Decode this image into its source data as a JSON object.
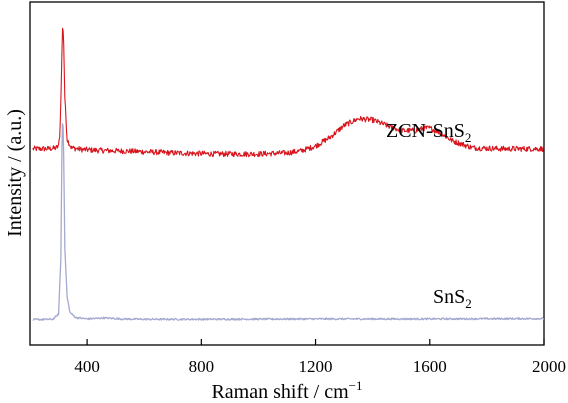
{
  "chart_data": {
    "type": "line",
    "title": "",
    "xlabel": "Raman shift / cm",
    "xlabel_sup": "−1",
    "ylabel": "Intensity / (a.u.)",
    "xlim": [
      200,
      2000
    ],
    "ylim": [
      0,
      1
    ],
    "xticks": [
      400,
      800,
      1200,
      1600,
      2000
    ],
    "xtick_labels": [
      "400",
      "800",
      "1200",
      "1600",
      "2000"
    ],
    "yticks_shown": false,
    "grid": false,
    "legend": "none (inline labels)",
    "series": [
      {
        "name": "ZCN-SnS2",
        "label_main": "ZCN-SnS",
        "label_sub": "2",
        "color": "#d8141c",
        "x": [
          210,
          260,
          290,
          300,
          305,
          310,
          313,
          315,
          318,
          322,
          330,
          345,
          380,
          450,
          550,
          700,
          850,
          1000,
          1100,
          1150,
          1200,
          1250,
          1300,
          1350,
          1400,
          1450,
          1500,
          1550,
          1580,
          1600,
          1630,
          1680,
          1750,
          1850,
          2000
        ],
        "values": [
          0.572,
          0.572,
          0.574,
          0.58,
          0.62,
          0.78,
          0.9,
          0.94,
          0.88,
          0.72,
          0.6,
          0.575,
          0.57,
          0.567,
          0.565,
          0.56,
          0.557,
          0.557,
          0.56,
          0.566,
          0.58,
          0.605,
          0.64,
          0.66,
          0.656,
          0.64,
          0.625,
          0.625,
          0.632,
          0.632,
          0.622,
          0.595,
          0.575,
          0.572,
          0.572
        ]
      },
      {
        "name": "SnS2",
        "label_main": "SnS",
        "label_sub": "2",
        "color": "#a4a9d0",
        "x": [
          210,
          280,
          300,
          308,
          312,
          315,
          318,
          322,
          330,
          340,
          360,
          400,
          460,
          520,
          600,
          800,
          1200,
          1600,
          2000
        ],
        "values": [
          0.074,
          0.075,
          0.09,
          0.25,
          0.58,
          0.68,
          0.55,
          0.28,
          0.14,
          0.095,
          0.08,
          0.076,
          0.079,
          0.076,
          0.075,
          0.075,
          0.076,
          0.076,
          0.077
        ]
      }
    ]
  }
}
